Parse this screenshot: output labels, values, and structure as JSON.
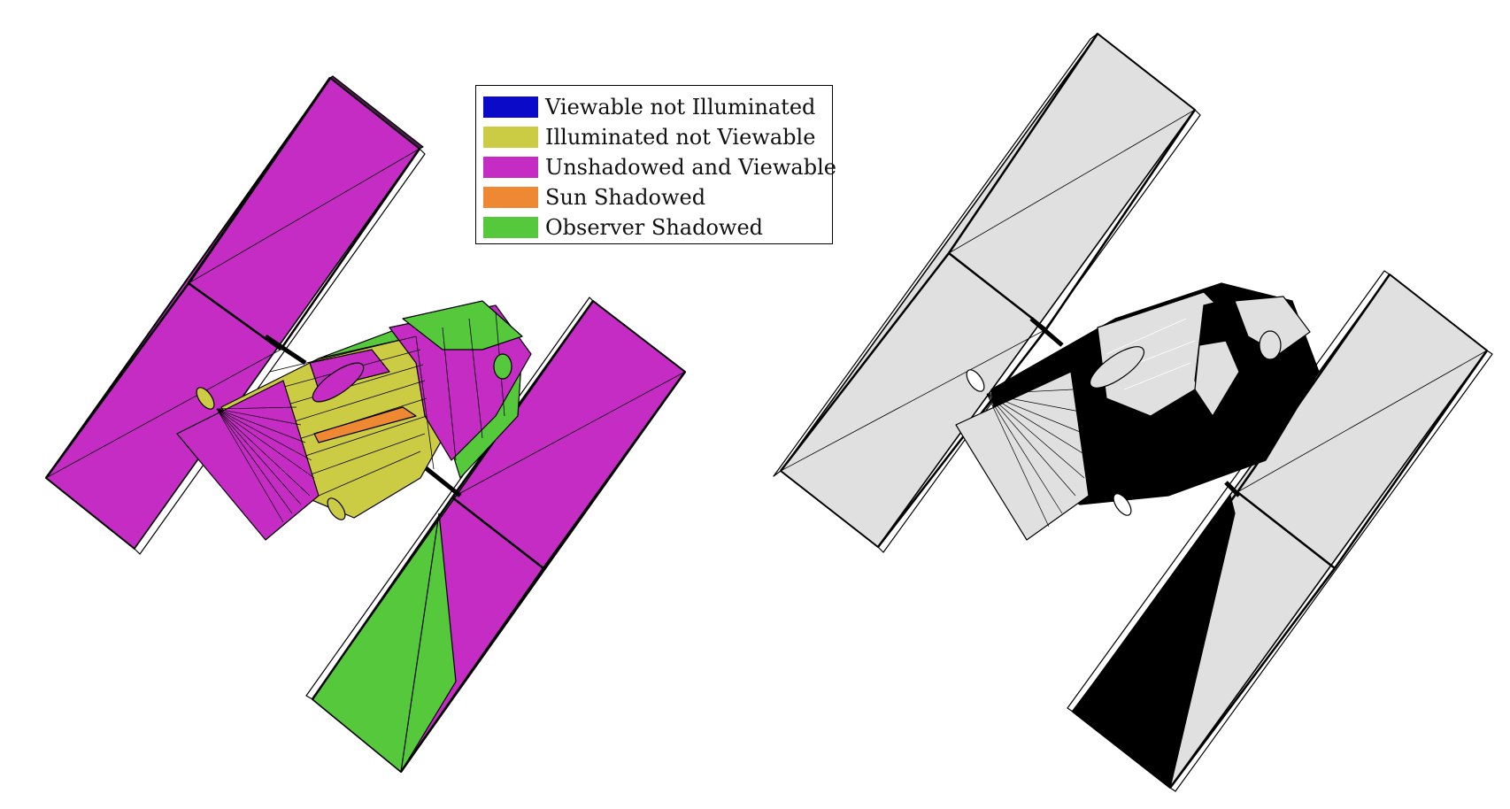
{
  "legend": {
    "items": [
      {
        "label": "Viewable not Illuminated",
        "color": "#0A0AC8"
      },
      {
        "label": "Illuminated not Viewable",
        "color": "#CCCC44"
      },
      {
        "label": "Unshadowed and Viewable",
        "color": "#C42CC4"
      },
      {
        "label": "Sun Shadowed",
        "color": "#EE8833"
      },
      {
        "label": "Observer Shadowed",
        "color": "#55C83C"
      }
    ]
  },
  "colors": {
    "panel_light": "#E0E0E0",
    "shadow_dark": "#000000"
  }
}
